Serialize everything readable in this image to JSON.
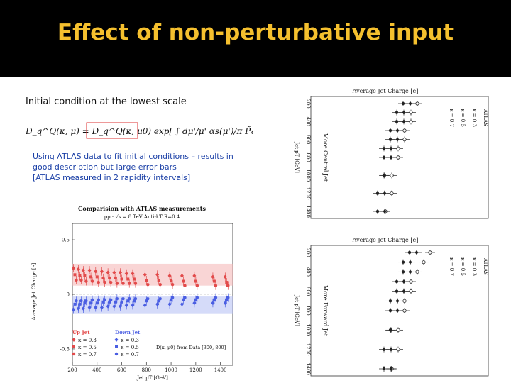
{
  "slide": {
    "title": "Effect of non-perturbative input",
    "subtitle": "Initial condition at the lowest scale",
    "equation": "D_q^Q(κ, μ) = D_q^Q(κ, μ0) exp[ ∫ dμ'/μ' αs(μ')/π P̃qq(κ, μ') ]",
    "text_lines": [
      "Using ATLAS data to fit initial conditions – results in",
      "good description but large error bars",
      "[ATLAS measured in 2 rapidity intervals]"
    ]
  },
  "chart_data": [
    {
      "type": "scatter",
      "title": "Comparision with ATLAS measurements",
      "subtitle": "pp · √s = 8 TeV Anti-kT R=0.4",
      "xlabel": "Jet pT [GeV]",
      "ylabel": "Average Jet Charge [e]",
      "xlim": [
        200,
        1500
      ],
      "ylim": [
        -0.65,
        0.65
      ],
      "xticks": [
        "200",
        "400",
        "600",
        "800",
        "1000",
        "1200",
        "1400"
      ],
      "yticks": [
        "0.5",
        "0",
        "-0.5"
      ],
      "legend": {
        "up_header": "Up Jet",
        "down_header": "Down Jet",
        "up": [
          "κ = 0.3",
          "κ = 0.5",
          "κ = 0.7"
        ],
        "down": [
          "κ = 0.3",
          "κ = 0.5",
          "κ = 0.7"
        ],
        "note": "D(κ, μ0) from Data [300, 800]"
      },
      "colors": {
        "up": "#e24a4a",
        "down": "#4a5ee2"
      },
      "x": [
        220,
        260,
        300,
        350,
        400,
        450,
        500,
        550,
        600,
        650,
        700,
        800,
        900,
        1000,
        1100,
        1200,
        1350,
        1450
      ],
      "series": [
        {
          "name": "Up Jet κ = 0.3",
          "values": [
            0.24,
            0.23,
            0.22,
            0.22,
            0.21,
            0.21,
            0.2,
            0.2,
            0.2,
            0.19,
            0.19,
            0.18,
            0.18,
            0.17,
            0.17,
            0.17,
            0.16,
            0.16
          ]
        },
        {
          "name": "Up Jet κ = 0.5",
          "values": [
            0.18,
            0.17,
            0.17,
            0.16,
            0.16,
            0.15,
            0.15,
            0.15,
            0.14,
            0.14,
            0.14,
            0.13,
            0.13,
            0.13,
            0.12,
            0.12,
            0.12,
            0.11
          ]
        },
        {
          "name": "Up Jet κ = 0.7",
          "values": [
            0.13,
            0.13,
            0.12,
            0.12,
            0.11,
            0.11,
            0.11,
            0.1,
            0.1,
            0.1,
            0.1,
            0.09,
            0.09,
            0.09,
            0.08,
            0.08,
            0.08,
            0.08
          ]
        },
        {
          "name": "Down Jet κ = 0.3",
          "values": [
            -0.14,
            -0.13,
            -0.13,
            -0.12,
            -0.12,
            -0.12,
            -0.11,
            -0.11,
            -0.11,
            -0.1,
            -0.1,
            -0.1,
            -0.09,
            -0.09,
            -0.09,
            -0.08,
            -0.08,
            -0.08
          ]
        },
        {
          "name": "Down Jet κ = 0.5",
          "values": [
            -0.09,
            -0.09,
            -0.08,
            -0.08,
            -0.08,
            -0.07,
            -0.07,
            -0.07,
            -0.07,
            -0.06,
            -0.06,
            -0.06,
            -0.06,
            -0.05,
            -0.05,
            -0.05,
            -0.05,
            -0.05
          ]
        },
        {
          "name": "Down Jet κ = 0.7",
          "values": [
            -0.06,
            -0.06,
            -0.06,
            -0.05,
            -0.05,
            -0.05,
            -0.05,
            -0.04,
            -0.04,
            -0.04,
            -0.04,
            -0.04,
            -0.04,
            -0.03,
            -0.03,
            -0.03,
            -0.03,
            -0.03
          ]
        }
      ]
    },
    {
      "type": "scatter",
      "title": "Average Jet Charge [e]",
      "xlabel": "Jet pT [GeV]",
      "legend": [
        "ATLAS",
        "κ = 0.3",
        "κ = 0.5",
        "κ = 0.7"
      ],
      "annotation": "More Central Jet",
      "x": [
        200,
        300,
        400,
        500,
        600,
        700,
        800,
        1000,
        1200,
        1400
      ],
      "series": [
        {
          "name": "κ = 0.3",
          "values": [
            0.1,
            0.09,
            0.09,
            0.08,
            0.08,
            0.07,
            0.07,
            0.06,
            0.06,
            0.05
          ]
        },
        {
          "name": "κ = 0.5",
          "values": [
            0.08,
            0.07,
            0.07,
            0.06,
            0.06,
            0.05,
            0.05,
            0.04,
            0.04,
            0.04
          ]
        },
        {
          "name": "κ = 0.7",
          "values": [
            0.06,
            0.05,
            0.05,
            0.04,
            0.04,
            0.03,
            0.03,
            0.03,
            0.02,
            0.02
          ]
        }
      ]
    },
    {
      "type": "scatter",
      "title": "Average Jet Charge [e]",
      "xlabel": "Jet pT [GeV]",
      "legend": [
        "ATLAS",
        "κ = 0.3",
        "κ = 0.5",
        "κ = 0.7"
      ],
      "annotation": "More Forward Jet",
      "x": [
        200,
        300,
        400,
        500,
        600,
        700,
        800,
        1000,
        1200,
        1400
      ],
      "series": [
        {
          "name": "κ = 0.3",
          "values": [
            0.12,
            0.11,
            0.1,
            0.09,
            0.09,
            0.08,
            0.08,
            0.07,
            0.07,
            0.06
          ]
        },
        {
          "name": "κ = 0.5",
          "values": [
            0.09,
            0.08,
            0.08,
            0.07,
            0.07,
            0.06,
            0.06,
            0.05,
            0.05,
            0.05
          ]
        },
        {
          "name": "κ = 0.7",
          "values": [
            0.07,
            0.06,
            0.06,
            0.05,
            0.05,
            0.04,
            0.04,
            0.04,
            0.03,
            0.03
          ]
        }
      ]
    }
  ]
}
